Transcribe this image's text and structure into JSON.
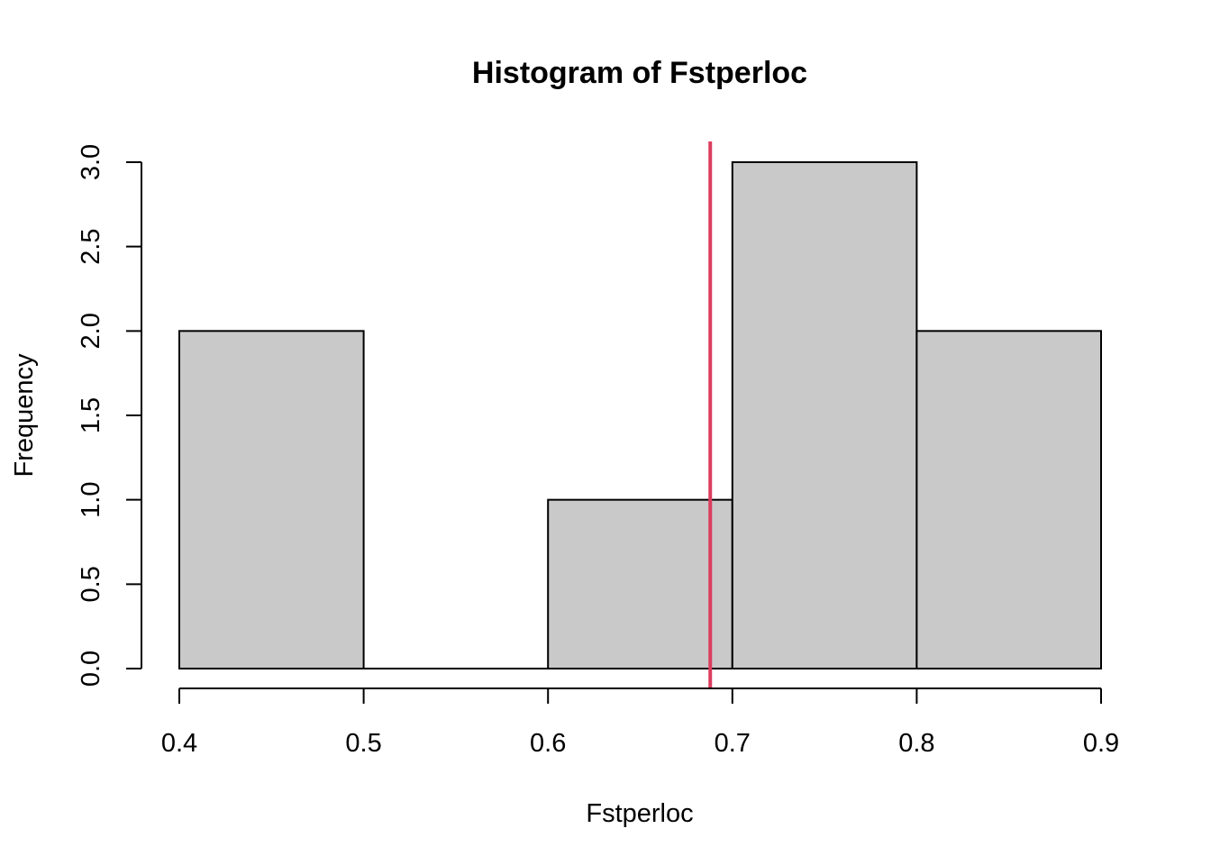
{
  "chart_data": {
    "type": "bar",
    "subtype": "histogram",
    "title": "Histogram of Fstperloc",
    "xlabel": "Fstperloc",
    "ylabel": "Frequency",
    "bins": [
      {
        "start": 0.4,
        "end": 0.5,
        "count": 2
      },
      {
        "start": 0.5,
        "end": 0.6,
        "count": 0
      },
      {
        "start": 0.6,
        "end": 0.7,
        "count": 1
      },
      {
        "start": 0.7,
        "end": 0.8,
        "count": 3
      },
      {
        "start": 0.8,
        "end": 0.9,
        "count": 2
      }
    ],
    "xlim": [
      0.4,
      0.9
    ],
    "ylim": [
      0,
      3
    ],
    "xticks": [
      0.4,
      0.5,
      0.6,
      0.7,
      0.8,
      0.9
    ],
    "xtick_labels": [
      "0.4",
      "0.5",
      "0.6",
      "0.7",
      "0.8",
      "0.9"
    ],
    "yticks": [
      0,
      0.5,
      1,
      1.5,
      2,
      2.5,
      3
    ],
    "ytick_labels": [
      "0.0",
      "0.5",
      "1.0",
      "1.5",
      "2.0",
      "2.5",
      "3.0"
    ],
    "bar_fill": "#c9c9c9",
    "bar_stroke": "#000000",
    "reference_line": {
      "orientation": "vertical",
      "x": 0.688,
      "color": "#dc3d5f"
    },
    "grid": false
  }
}
